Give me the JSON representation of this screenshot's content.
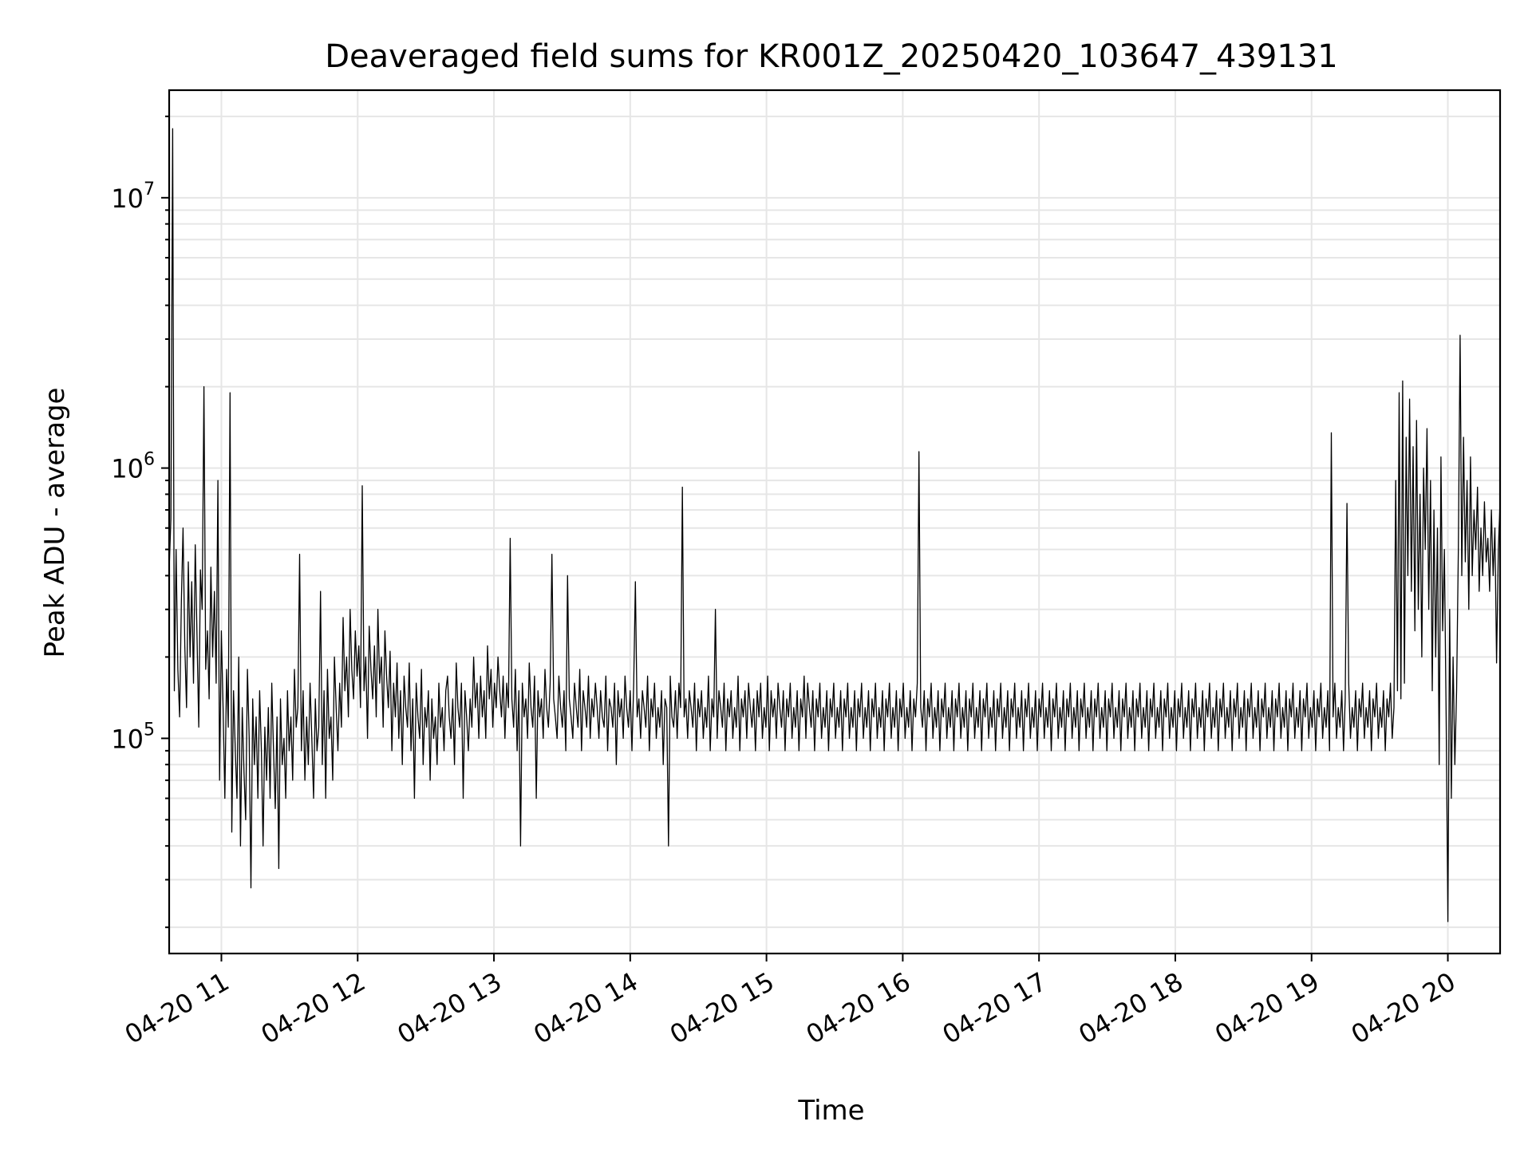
{
  "chart_data": {
    "type": "line",
    "title": "Deaveraged field sums for KR001Z_20250420_103647_439131",
    "xlabel": "Time",
    "ylabel": "Peak ADU - average",
    "yscale": "log",
    "ylim": [
      16000,
      25000000
    ],
    "xlim": [
      "2025-04-20 10:37",
      "2025-04-20 20:23"
    ],
    "grid": true,
    "color": "#000000",
    "x_ticks": [
      {
        "t": "2025-04-20 11:00",
        "label": "04-20 11"
      },
      {
        "t": "2025-04-20 12:00",
        "label": "04-20 12"
      },
      {
        "t": "2025-04-20 13:00",
        "label": "04-20 13"
      },
      {
        "t": "2025-04-20 14:00",
        "label": "04-20 14"
      },
      {
        "t": "2025-04-20 15:00",
        "label": "04-20 15"
      },
      {
        "t": "2025-04-20 16:00",
        "label": "04-20 16"
      },
      {
        "t": "2025-04-20 17:00",
        "label": "04-20 17"
      },
      {
        "t": "2025-04-20 18:00",
        "label": "04-20 18"
      },
      {
        "t": "2025-04-20 19:00",
        "label": "04-20 19"
      },
      {
        "t": "2025-04-20 20:00",
        "label": "04-20 20"
      }
    ],
    "y_ticks": [
      {
        "value": 100000,
        "base": "10",
        "exp": "5"
      },
      {
        "value": 1000000,
        "base": "10",
        "exp": "6"
      },
      {
        "value": 10000000,
        "base": "10",
        "exp": "7"
      }
    ],
    "series": [
      {
        "x_start": "2025-04-20 10:37",
        "x_end": "2025-04-20 20:23",
        "values": [
          420000,
          650000,
          18000000,
          150000,
          500000,
          180000,
          120000,
          320000,
          600000,
          220000,
          130000,
          450000,
          200000,
          380000,
          160000,
          520000,
          240000,
          110000,
          420000,
          300000,
          2000000,
          180000,
          250000,
          140000,
          430000,
          200000,
          350000,
          160000,
          900000,
          70000,
          250000,
          130000,
          60000,
          180000,
          110000,
          1900000,
          45000,
          150000,
          90000,
          60000,
          200000,
          40000,
          130000,
          75000,
          50000,
          180000,
          100000,
          28000,
          140000,
          80000,
          120000,
          60000,
          150000,
          90000,
          40000,
          110000,
          70000,
          130000,
          60000,
          160000,
          90000,
          55000,
          120000,
          33000,
          140000,
          80000,
          100000,
          60000,
          150000,
          90000,
          120000,
          70000,
          180000,
          110000,
          130000,
          480000,
          90000,
          150000,
          70000,
          120000,
          80000,
          160000,
          100000,
          60000,
          140000,
          90000,
          110000,
          350000,
          80000,
          150000,
          60000,
          180000,
          100000,
          120000,
          70000,
          200000,
          130000,
          90000,
          160000,
          110000,
          280000,
          150000,
          200000,
          120000,
          300000,
          180000,
          140000,
          250000,
          170000,
          220000,
          130000,
          860000,
          150000,
          200000,
          100000,
          260000,
          180000,
          140000,
          220000,
          120000,
          300000,
          160000,
          200000,
          110000,
          250000,
          170000,
          130000,
          210000,
          90000,
          160000,
          120000,
          190000,
          100000,
          150000,
          80000,
          170000,
          130000,
          110000,
          190000,
          90000,
          140000,
          60000,
          160000,
          120000,
          100000,
          180000,
          80000,
          130000,
          110000,
          150000,
          70000,
          140000,
          100000,
          120000,
          80000,
          160000,
          110000,
          130000,
          90000,
          150000,
          170000,
          120000,
          100000,
          140000,
          80000,
          190000,
          130000,
          110000,
          160000,
          60000,
          150000,
          120000,
          90000,
          140000,
          110000,
          200000,
          130000,
          160000,
          100000,
          170000,
          120000,
          150000,
          100000,
          220000,
          140000,
          180000,
          110000,
          160000,
          130000,
          200000,
          150000,
          120000,
          170000,
          100000,
          160000,
          130000,
          550000,
          140000,
          110000,
          180000,
          90000,
          150000,
          40000,
          160000,
          120000,
          140000,
          100000,
          190000,
          130000,
          110000,
          170000,
          60000,
          150000,
          120000,
          140000,
          100000,
          180000,
          130000,
          110000,
          160000,
          480000,
          140000,
          120000,
          100000,
          170000,
          130000,
          110000,
          150000,
          90000,
          400000,
          140000,
          120000,
          100000,
          160000,
          130000,
          110000,
          180000,
          90000,
          150000,
          130000,
          110000,
          170000,
          100000,
          140000,
          120000,
          160000,
          130000,
          100000,
          150000,
          120000,
          110000,
          170000,
          90000,
          140000,
          130000,
          110000,
          160000,
          80000,
          150000,
          120000,
          140000,
          100000,
          170000,
          130000,
          110000,
          150000,
          90000,
          160000,
          380000,
          120000,
          140000,
          100000,
          150000,
          130000,
          110000,
          170000,
          90000,
          140000,
          120000,
          160000,
          100000,
          130000,
          110000,
          150000,
          80000,
          140000,
          130000,
          40000,
          170000,
          120000,
          110000,
          150000,
          100000,
          160000,
          130000,
          850000,
          120000,
          140000,
          100000,
          150000,
          130000,
          110000,
          160000,
          90000,
          140000,
          120000,
          150000,
          100000,
          130000,
          110000,
          170000,
          90000,
          140000,
          120000,
          300000,
          100000,
          150000,
          130000,
          110000,
          160000,
          90000,
          140000,
          120000,
          150000,
          100000,
          130000,
          110000,
          170000,
          90000,
          140000,
          120000,
          150000,
          100000,
          160000,
          130000,
          110000,
          140000,
          90000,
          150000,
          120000,
          160000,
          100000,
          130000,
          110000,
          170000,
          90000,
          150000,
          120000,
          140000,
          100000,
          160000,
          130000,
          110000,
          150000,
          90000,
          140000,
          120000,
          160000,
          100000,
          130000,
          110000,
          150000,
          90000,
          140000,
          120000,
          170000,
          100000,
          160000,
          130000,
          110000,
          150000,
          90000,
          140000,
          120000,
          160000,
          100000,
          130000,
          110000,
          150000,
          90000,
          140000,
          120000,
          160000,
          100000,
          130000,
          110000,
          150000,
          90000,
          140000,
          120000,
          160000,
          100000,
          130000,
          110000,
          150000,
          90000,
          140000,
          120000,
          160000,
          100000,
          130000,
          110000,
          150000,
          90000,
          140000,
          120000,
          160000,
          100000,
          130000,
          110000,
          150000,
          90000,
          140000,
          120000,
          160000,
          100000,
          130000,
          110000,
          150000,
          90000,
          140000,
          120000,
          160000,
          100000,
          130000,
          110000,
          150000,
          90000,
          140000,
          120000,
          160000,
          1150000,
          130000,
          110000,
          150000,
          90000,
          140000,
          120000,
          160000,
          100000,
          130000,
          110000,
          150000,
          90000,
          140000,
          120000,
          160000,
          100000,
          130000,
          110000,
          150000,
          90000,
          140000,
          120000,
          160000,
          100000,
          130000,
          110000,
          150000,
          90000,
          140000,
          120000,
          160000,
          100000,
          130000,
          110000,
          150000,
          90000,
          140000,
          120000,
          160000,
          100000,
          130000,
          110000,
          150000,
          90000,
          140000,
          120000,
          160000,
          100000,
          130000,
          110000,
          150000,
          90000,
          140000,
          120000,
          160000,
          100000,
          130000,
          110000,
          150000,
          90000,
          140000,
          120000,
          160000,
          100000,
          130000,
          110000,
          150000,
          90000,
          140000,
          120000,
          160000,
          100000,
          130000,
          110000,
          150000,
          90000,
          140000,
          120000,
          160000,
          100000,
          130000,
          110000,
          150000,
          90000,
          140000,
          120000,
          160000,
          100000,
          130000,
          110000,
          150000,
          90000,
          140000,
          120000,
          160000,
          100000,
          130000,
          110000,
          150000,
          90000,
          140000,
          120000,
          160000,
          100000,
          130000,
          110000,
          150000,
          90000,
          140000,
          120000,
          160000,
          100000,
          130000,
          110000,
          150000,
          90000,
          140000,
          120000,
          160000,
          100000,
          130000,
          110000,
          150000,
          90000,
          140000,
          120000,
          160000,
          100000,
          130000,
          110000,
          150000,
          90000,
          140000,
          120000,
          160000,
          100000,
          130000,
          110000,
          150000,
          90000,
          140000,
          120000,
          160000,
          100000,
          130000,
          110000,
          150000,
          90000,
          140000,
          120000,
          160000,
          100000,
          130000,
          110000,
          150000,
          90000,
          140000,
          120000,
          160000,
          100000,
          130000,
          110000,
          150000,
          90000,
          140000,
          120000,
          160000,
          100000,
          130000,
          110000,
          150000,
          90000,
          140000,
          120000,
          160000,
          100000,
          130000,
          110000,
          150000,
          90000,
          140000,
          120000,
          160000,
          100000,
          130000,
          110000,
          150000,
          90000,
          140000,
          120000,
          160000,
          100000,
          130000,
          110000,
          150000,
          90000,
          140000,
          120000,
          160000,
          100000,
          130000,
          110000,
          150000,
          90000,
          140000,
          120000,
          160000,
          100000,
          130000,
          110000,
          150000,
          90000,
          140000,
          120000,
          160000,
          100000,
          130000,
          110000,
          150000,
          90000,
          140000,
          120000,
          160000,
          100000,
          130000,
          110000,
          150000,
          90000,
          140000,
          120000,
          160000,
          100000,
          130000,
          110000,
          150000,
          90000,
          1350000,
          120000,
          160000,
          100000,
          130000,
          110000,
          150000,
          90000,
          140000,
          740000,
          160000,
          100000,
          130000,
          110000,
          150000,
          90000,
          140000,
          120000,
          160000,
          100000,
          130000,
          110000,
          150000,
          90000,
          140000,
          120000,
          160000,
          100000,
          130000,
          110000,
          150000,
          90000,
          140000,
          120000,
          160000,
          100000,
          130000,
          900000,
          150000,
          1900000,
          140000,
          2100000,
          160000,
          1300000,
          400000,
          1800000,
          350000,
          1200000,
          250000,
          1500000,
          300000,
          800000,
          200000,
          1000000,
          500000,
          1400000,
          300000,
          900000,
          150000,
          700000,
          200000,
          600000,
          80000,
          1100000,
          250000,
          500000,
          120000,
          21000,
          300000,
          60000,
          200000,
          80000,
          150000,
          500000,
          3100000,
          400000,
          1300000,
          450000,
          900000,
          300000,
          1100000,
          400000,
          700000,
          500000,
          850000,
          350000,
          600000,
          400000,
          750000,
          450000,
          550000,
          350000,
          700000,
          400000,
          600000,
          190000,
          500000,
          750000
        ]
      }
    ]
  }
}
